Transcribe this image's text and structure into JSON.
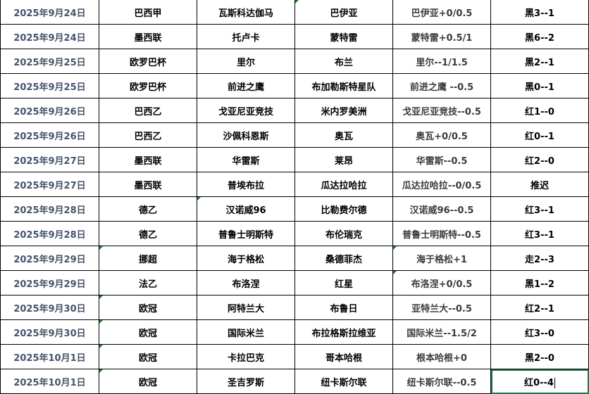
{
  "columns": [
    "date",
    "league",
    "home",
    "away",
    "handicap",
    "result"
  ],
  "rows": [
    [
      "2025年9月24日",
      "巴西甲",
      "瓦斯科达伽马",
      "巴伊亚",
      "巴伊亚+0/0.5",
      "黑3--1"
    ],
    [
      "2025年9月24日",
      "墨西联",
      "托卢卡",
      "蒙特雷",
      "蒙特雷+0.5/1",
      "黑6--2"
    ],
    [
      "2025年9月25日",
      "欧罗巴杯",
      "里尔",
      "布兰",
      "里尔--1/1.5",
      "黑2--1"
    ],
    [
      "2025年9月25日",
      "欧罗巴杯",
      "前进之鹰",
      "布加勒斯特星队",
      "前进之鹰 --0.5",
      "黑0--1"
    ],
    [
      "2025年9月26日",
      "巴西乙",
      "戈亚尼亚竞技",
      "米内罗美洲",
      "戈亚尼亚竞技--0.5",
      "红1--0"
    ],
    [
      "2025年9月26日",
      "巴西乙",
      "沙佩科恩斯",
      "奥瓦",
      "奥瓦+0/0.5",
      "红0--1"
    ],
    [
      "2025年9月27日",
      "墨西联",
      "华雷斯",
      "莱昂",
      "华雷斯--0.5",
      "红2--0"
    ],
    [
      "2025年9月27日",
      "墨西联",
      "普埃布拉",
      "瓜达拉哈拉",
      "瓜达拉哈拉--0/0.5",
      "推迟"
    ],
    [
      "2025年9月28日",
      "德乙",
      "汉诺威96",
      "比勒费尔德",
      "汉诺威96--0.5",
      "红3--1"
    ],
    [
      "2025年9月28日",
      "德乙",
      "普鲁士明斯特",
      "布伦瑞克",
      "普鲁士明斯特--0.5",
      "红3--1"
    ],
    [
      "2025年9月29日",
      "挪超",
      "海于格松",
      "桑德菲杰",
      "海于格松+1",
      "走2--3"
    ],
    [
      "2025年9月29日",
      "法乙",
      "布洛涅",
      "红星",
      "布洛涅+0/0.5",
      "黑1--2"
    ],
    [
      "2025年9月30日",
      "欧冠",
      "阿特兰大",
      "布鲁日",
      "亚特兰大--0.5",
      "红2--1"
    ],
    [
      "2025年9月30日",
      "欧冠",
      "国际米兰",
      "布拉格斯拉维亚",
      "国际米兰--1.5/2",
      "红3--0"
    ],
    [
      "2025年10月1日",
      "欧冠",
      "卡拉巴克",
      "哥本哈根",
      "根本哈根+0",
      "黑2--0"
    ],
    [
      "2025年10月1日",
      "欧冠",
      "圣吉罗斯",
      "纽卡斯尔联",
      "纽卡斯尔联--0.5",
      "红0--4"
    ]
  ],
  "selected_cell": "红0--4",
  "accent_color": "#217346"
}
